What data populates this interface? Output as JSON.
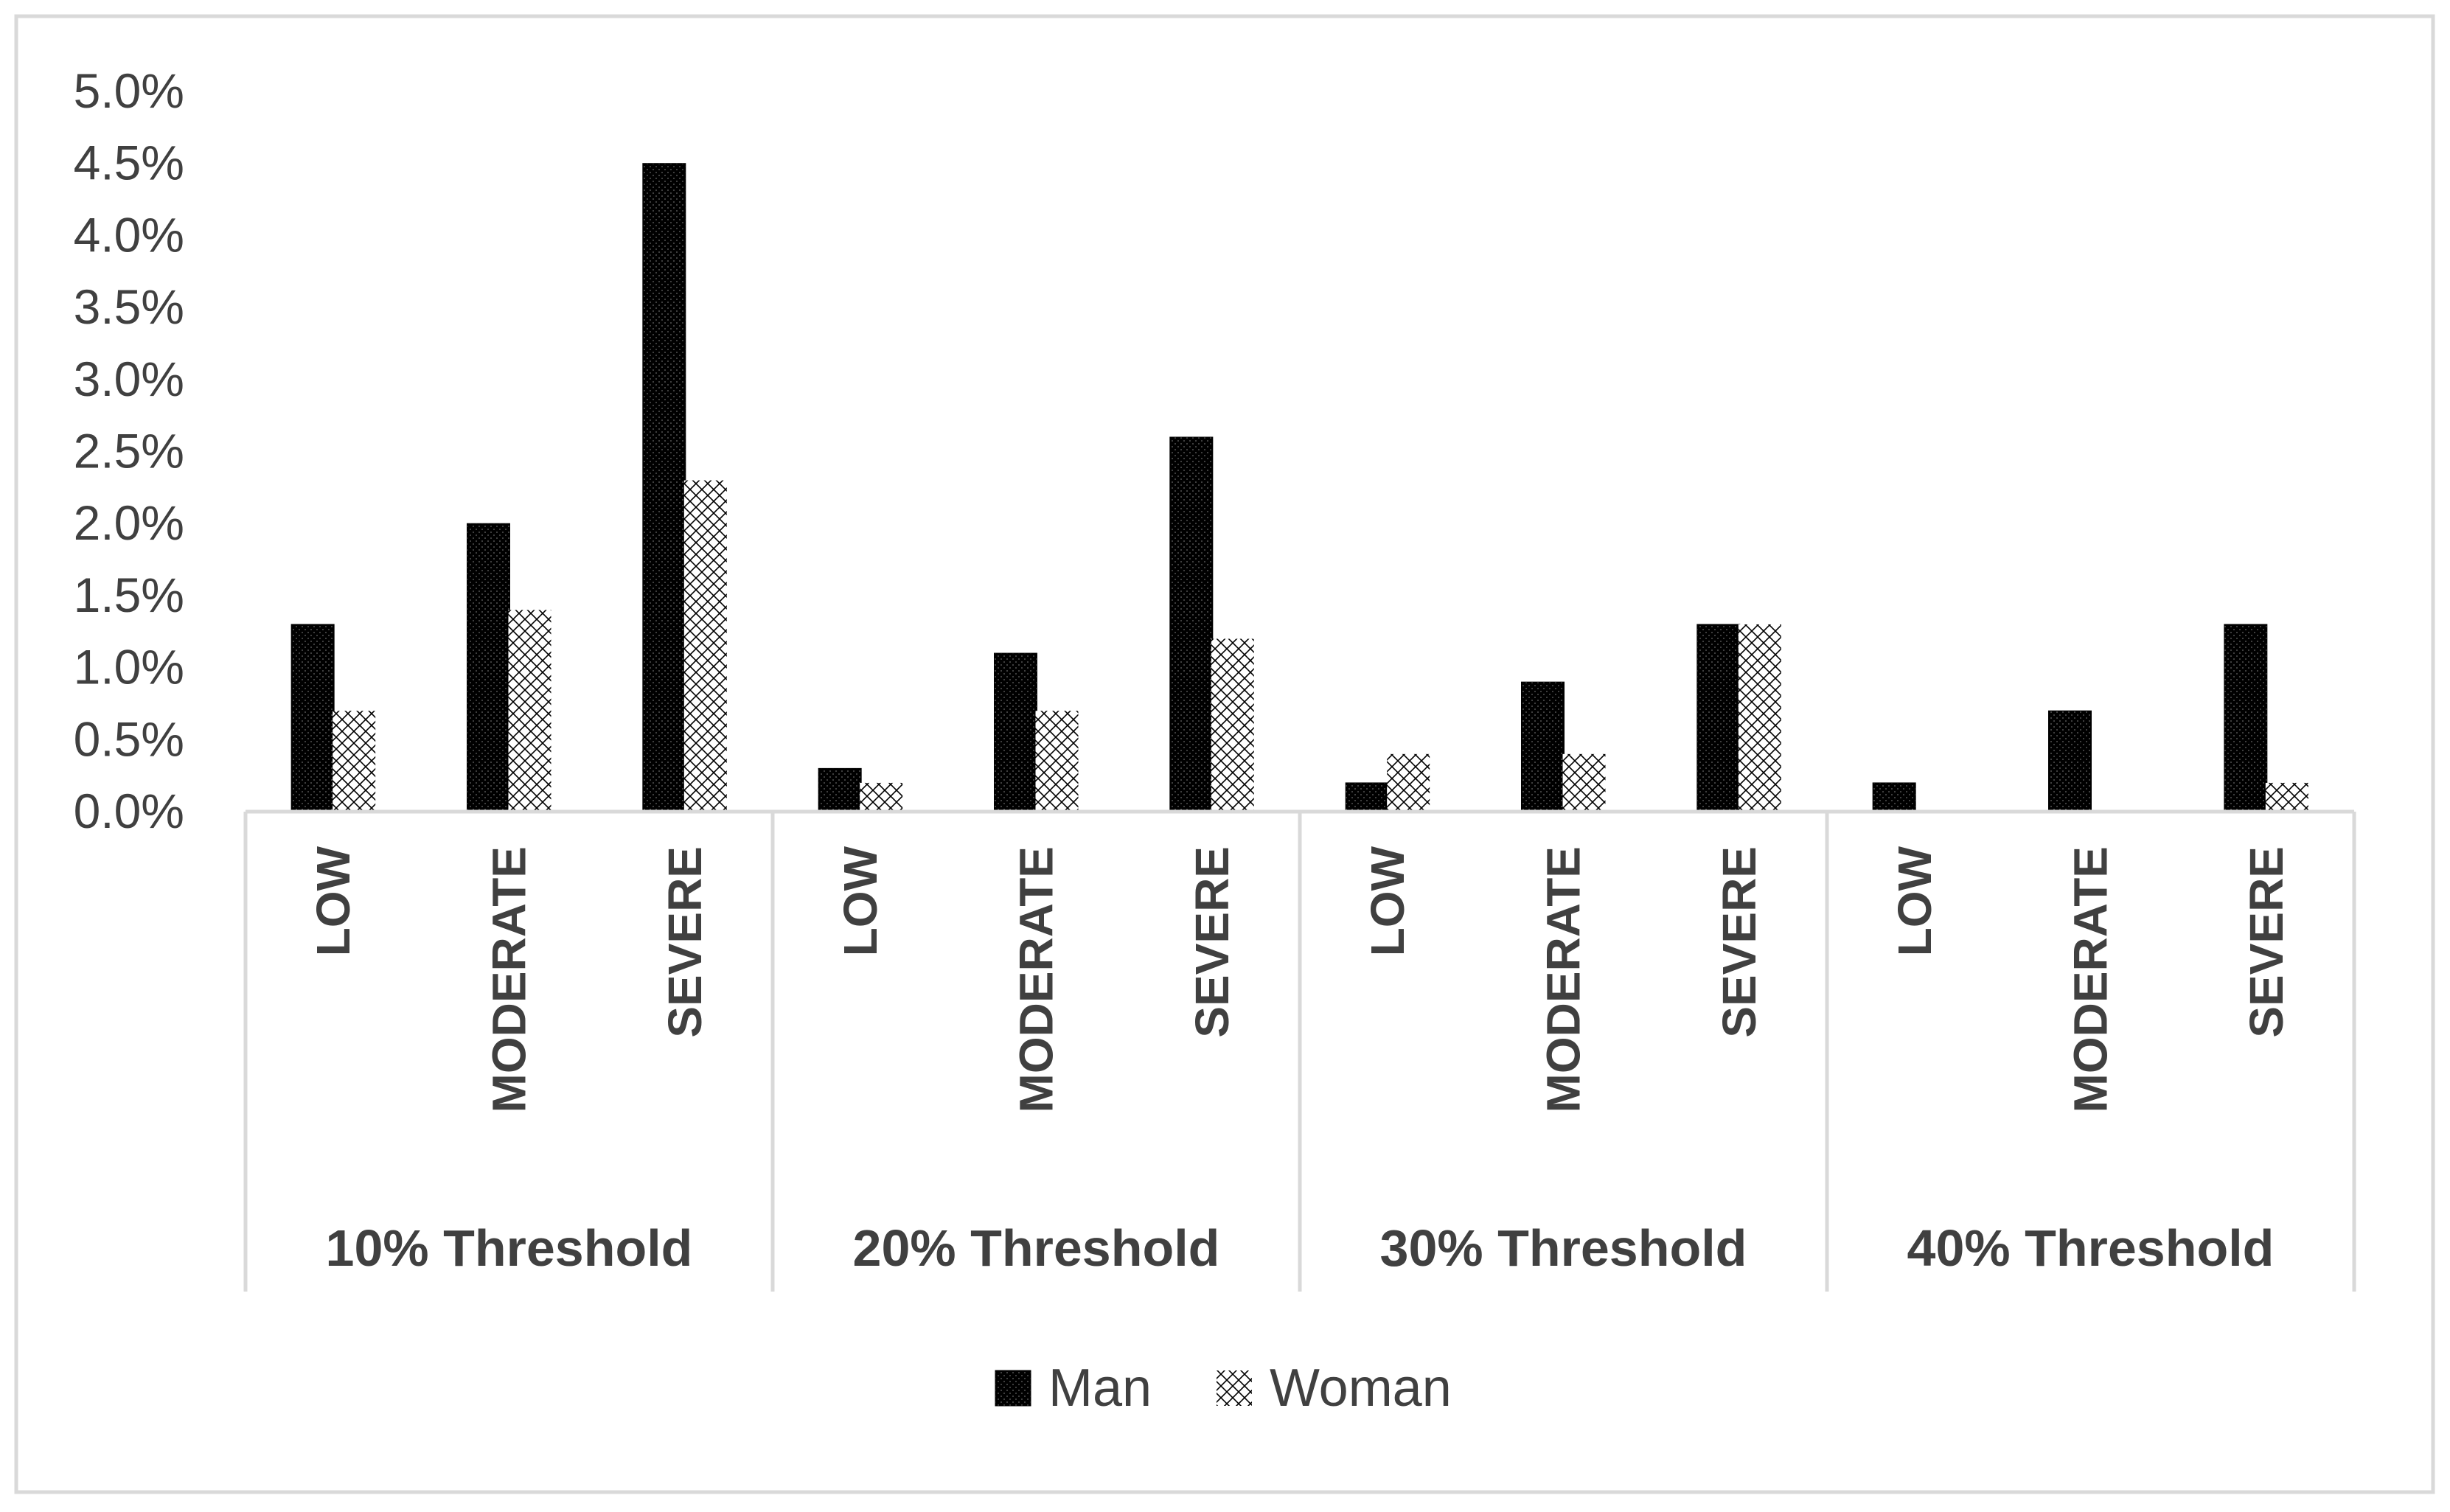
{
  "colors": {
    "background": "#ffffff",
    "frame": "#d9d9d9",
    "axis": "#d9d9d9",
    "text": "#404040",
    "man": "#000000",
    "woman": "#ffffff"
  },
  "chart_data": {
    "type": "bar",
    "title": "",
    "xlabel": "",
    "ylabel": "",
    "ylim": [
      0,
      0.05
    ],
    "y_ticks": [
      "0.0%",
      "0.5%",
      "1.0%",
      "1.5%",
      "2.0%",
      "2.5%",
      "3.0%",
      "3.5%",
      "4.0%",
      "4.5%",
      "5.0%"
    ],
    "grid": false,
    "legend_position": "bottom",
    "groups": [
      "10% Threshold",
      "20% Threshold",
      "30% Threshold",
      "40% Threshold"
    ],
    "subcategories": [
      "LOW",
      "MODERATE",
      "SEVERE"
    ],
    "series": [
      {
        "name": "Man",
        "pattern": "dotted-dark",
        "values": [
          0.013,
          0.02,
          0.045,
          0.003,
          0.011,
          0.026,
          0.002,
          0.009,
          0.013,
          0.002,
          0.007,
          0.013
        ]
      },
      {
        "name": "Woman",
        "pattern": "crosshatch-light",
        "values": [
          0.007,
          0.014,
          0.023,
          0.002,
          0.007,
          0.012,
          0.004,
          0.004,
          0.013,
          0.0,
          0.0,
          0.002
        ]
      }
    ]
  }
}
